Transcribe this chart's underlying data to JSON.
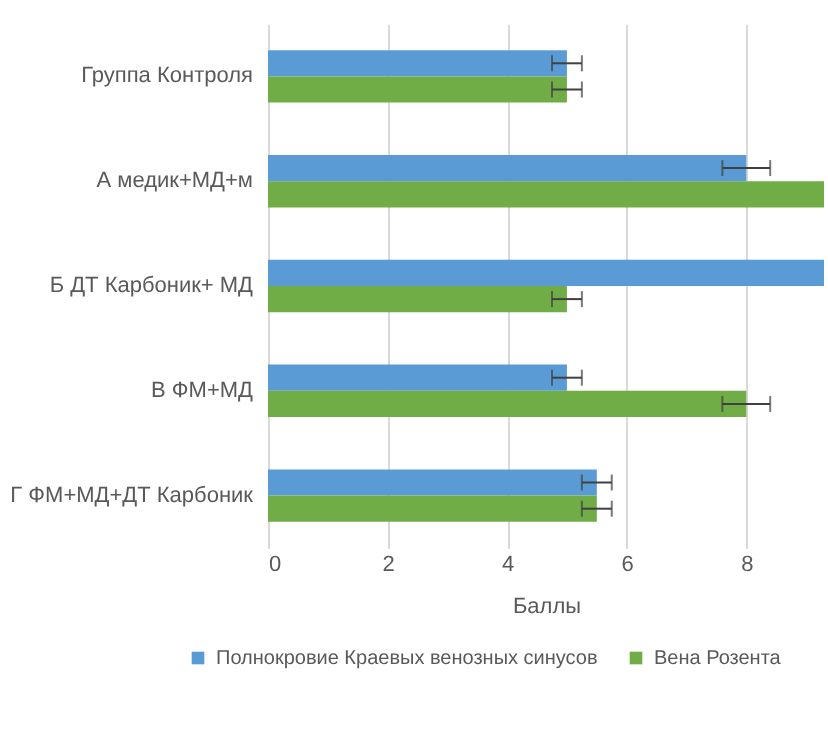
{
  "chart_data": {
    "type": "bar",
    "orientation": "horizontal",
    "xlabel": "Баллы",
    "categories": [
      "Группа Контроля",
      "А медик+МД+м",
      "Б ДТ Карбоник+ МД",
      "В ФМ+МД",
      "Г ФМ+МД+ДТ Карбоник"
    ],
    "series": [
      {
        "name": "Полнокровие Краевых венозных синусов",
        "color": "#5b9bd5",
        "values": [
          5,
          8,
          9.3,
          5,
          5.5
        ],
        "errors": [
          0.25,
          0.4,
          null,
          0.25,
          0.25
        ]
      },
      {
        "name": "Вена Розента",
        "color": "#70ad47",
        "values": [
          5,
          9.3,
          5,
          8,
          5.5
        ],
        "errors": [
          0.25,
          null,
          0.25,
          0.4,
          0.25
        ]
      }
    ],
    "xlim": [
      0,
      9.3
    ],
    "xticks": [
      0,
      2,
      4,
      6,
      8
    ],
    "grid": "x",
    "legend": "bottom"
  }
}
